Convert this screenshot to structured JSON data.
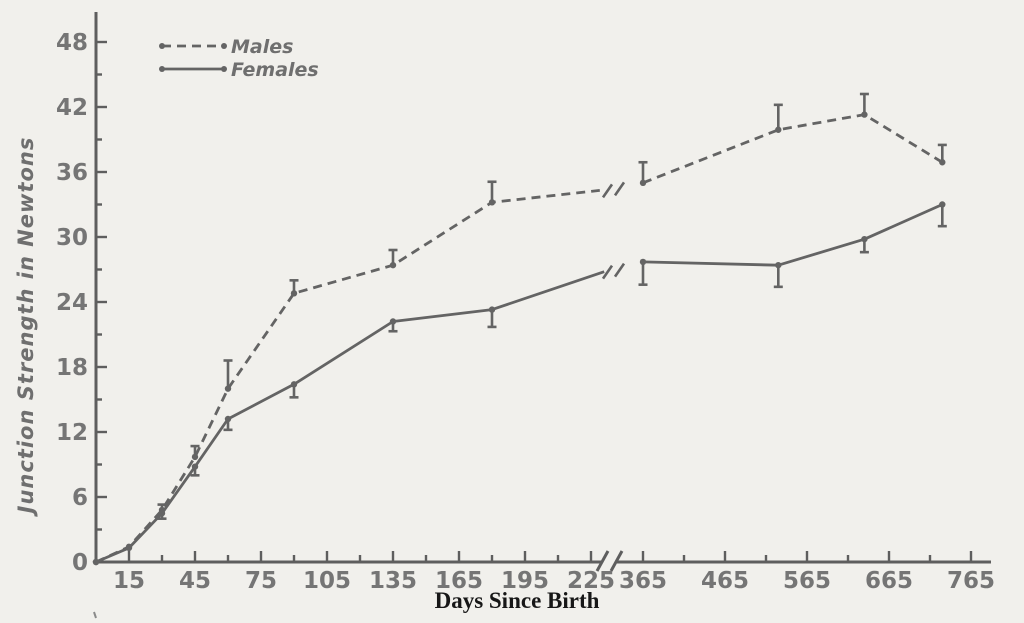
{
  "chart_data": {
    "type": "line",
    "title": "",
    "xlabel": "Days Since Birth",
    "ylabel": "Junction Strength in Newtons",
    "grid": false,
    "legend": {
      "position": "top-left",
      "items": [
        "Males",
        "Females"
      ]
    },
    "y_axis": {
      "range": [
        0,
        50
      ],
      "labeled_ticks": [
        0,
        6,
        12,
        18,
        24,
        30,
        36,
        42,
        48
      ],
      "minor_ticks": [
        3,
        9,
        15,
        21,
        27,
        33,
        39,
        45
      ]
    },
    "x_axis": {
      "unit": "days",
      "break_between": [
        225,
        365
      ],
      "pre_break": {
        "labeled_ticks": [
          15,
          45,
          75,
          105,
          135,
          165,
          195,
          225
        ],
        "minor_ticks": [
          30,
          60,
          90,
          120,
          150,
          180,
          210
        ]
      },
      "post_break": {
        "labeled_ticks": [
          365,
          465,
          565,
          665,
          765
        ],
        "minor_ticks": [
          415,
          515,
          615,
          715
        ]
      }
    },
    "series": [
      {
        "name": "Males",
        "line_style": "dashed",
        "error_bar_direction": "up",
        "pre_break_points": [
          {
            "day": 0,
            "value": 0,
            "err": 0
          },
          {
            "day": 15,
            "value": 1.4,
            "err": 0
          },
          {
            "day": 30,
            "value": 4.8,
            "err": 0.5
          },
          {
            "day": 45,
            "value": 9.7,
            "err": 1.0
          },
          {
            "day": 60,
            "value": 16.0,
            "err": 2.6
          },
          {
            "day": 90,
            "value": 24.8,
            "err": 1.2
          },
          {
            "day": 135,
            "value": 27.4,
            "err": 1.4
          },
          {
            "day": 180,
            "value": 33.2,
            "err": 1.9
          }
        ],
        "pre_break_line_end": {
          "day": 229,
          "value": 34.3
        },
        "post_break_points": [
          {
            "day": 365,
            "value": 35.0,
            "err": 1.9
          },
          {
            "day": 530,
            "value": 39.9,
            "err": 2.3
          },
          {
            "day": 635,
            "value": 41.3,
            "err": 1.9
          },
          {
            "day": 730,
            "value": 36.9,
            "err": 1.6
          }
        ]
      },
      {
        "name": "Females",
        "line_style": "solid",
        "error_bar_direction": "down",
        "pre_break_points": [
          {
            "day": 0,
            "value": 0,
            "err": 0
          },
          {
            "day": 15,
            "value": 1.3,
            "err": 0
          },
          {
            "day": 30,
            "value": 4.5,
            "err": 0.5
          },
          {
            "day": 45,
            "value": 8.8,
            "err": 0.8
          },
          {
            "day": 60,
            "value": 13.2,
            "err": 1.0
          },
          {
            "day": 90,
            "value": 16.4,
            "err": 1.2
          },
          {
            "day": 135,
            "value": 22.2,
            "err": 0.9
          },
          {
            "day": 180,
            "value": 23.3,
            "err": 1.6
          }
        ],
        "pre_break_line_end": {
          "day": 231,
          "value": 26.8
        },
        "post_break_points": [
          {
            "day": 365,
            "value": 27.7,
            "err": 2.1
          },
          {
            "day": 530,
            "value": 27.4,
            "err": 2.0
          },
          {
            "day": 635,
            "value": 29.8,
            "err": 1.2
          },
          {
            "day": 730,
            "value": 33.0,
            "err": 2.0
          }
        ]
      }
    ],
    "colors": {
      "line": "#646464",
      "axis": "#5e5e5e",
      "tick_text": "#757575",
      "legend_text": "#6f6f6f",
      "x_title_text": "#171717",
      "background": "#f1f0ec"
    }
  }
}
